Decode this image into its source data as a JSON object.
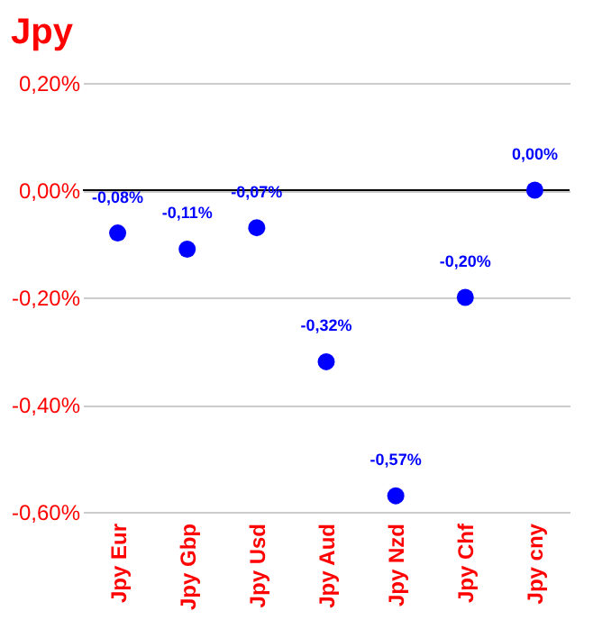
{
  "chart_data": {
    "type": "scatter",
    "title": "Jpy",
    "categories": [
      "Jpy Eur",
      "Jpy Gbp",
      "Jpy Usd",
      "Jpy Aud",
      "Jpy Nzd",
      "Jpy Chf",
      "Jpy cny"
    ],
    "series": [
      {
        "color": "#0000ff",
        "values": [
          -0.08,
          -0.11,
          -0.07,
          -0.32,
          -0.57,
          -0.2,
          0.0
        ],
        "value_labels": [
          "-0,08%",
          "-0,11%",
          "-0,07%",
          "-0,32%",
          "-0,57%",
          "-0,20%",
          "0,00%"
        ]
      }
    ],
    "ylim": [
      -0.6,
      0.2
    ],
    "yticks": [
      {
        "value": 0.2,
        "label": "0,20%"
      },
      {
        "value": 0.0,
        "label": "0,00%"
      },
      {
        "value": -0.2,
        "label": "-0,20%"
      },
      {
        "value": -0.4,
        "label": "-0,40%"
      },
      {
        "value": -0.6,
        "label": "-0,60%"
      }
    ],
    "ref_lines": [
      {
        "axis": "y",
        "value": 0.0,
        "color": "#000000"
      }
    ],
    "grid": "y",
    "marker": "circle"
  }
}
